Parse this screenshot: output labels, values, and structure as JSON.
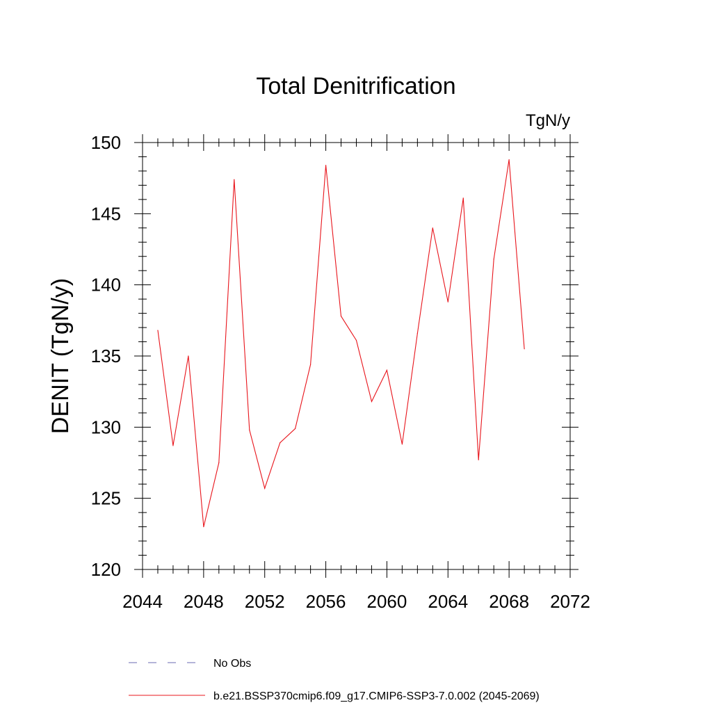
{
  "chart_data": {
    "type": "line",
    "title": "Total Denitrification",
    "units_label": "TgN/y",
    "ylabel": "DENIT  (TgN/y)",
    "xlabel": "",
    "xlim": [
      2044,
      2072
    ],
    "ylim": [
      120,
      150
    ],
    "x_major_ticks": [
      2044,
      2048,
      2052,
      2056,
      2060,
      2064,
      2068,
      2072
    ],
    "x_minor_step": 1,
    "y_major_ticks": [
      120,
      125,
      130,
      135,
      140,
      145,
      150
    ],
    "y_minor_step": 1,
    "grid": false,
    "legend_position": "bottom",
    "series": [
      {
        "name": "b.e21.BSSP370cmip6.f09_g17.CMIP6-SSP3-7.0.002 (2045-2069)",
        "color": "#e8141b",
        "style": "solid",
        "x": [
          2045,
          2046,
          2047,
          2048,
          2049,
          2050,
          2051,
          2052,
          2053,
          2054,
          2055,
          2056,
          2057,
          2058,
          2059,
          2060,
          2061,
          2062,
          2063,
          2064,
          2065,
          2066,
          2067,
          2068,
          2069
        ],
        "y": [
          136.8,
          128.7,
          135.0,
          123.0,
          127.5,
          147.4,
          129.8,
          125.7,
          128.9,
          129.9,
          134.4,
          148.4,
          137.8,
          136.1,
          131.8,
          134.0,
          128.8,
          136.6,
          144.0,
          138.8,
          146.1,
          127.7,
          141.8,
          148.8,
          135.5
        ]
      }
    ],
    "legend": [
      {
        "label": "No Obs",
        "color": "#6a6ab0",
        "style": "dashed"
      },
      {
        "label": "b.e21.BSSP370cmip6.f09_g17.CMIP6-SSP3-7.0.002 (2045-2069)",
        "color": "#e8141b",
        "style": "solid"
      }
    ]
  }
}
